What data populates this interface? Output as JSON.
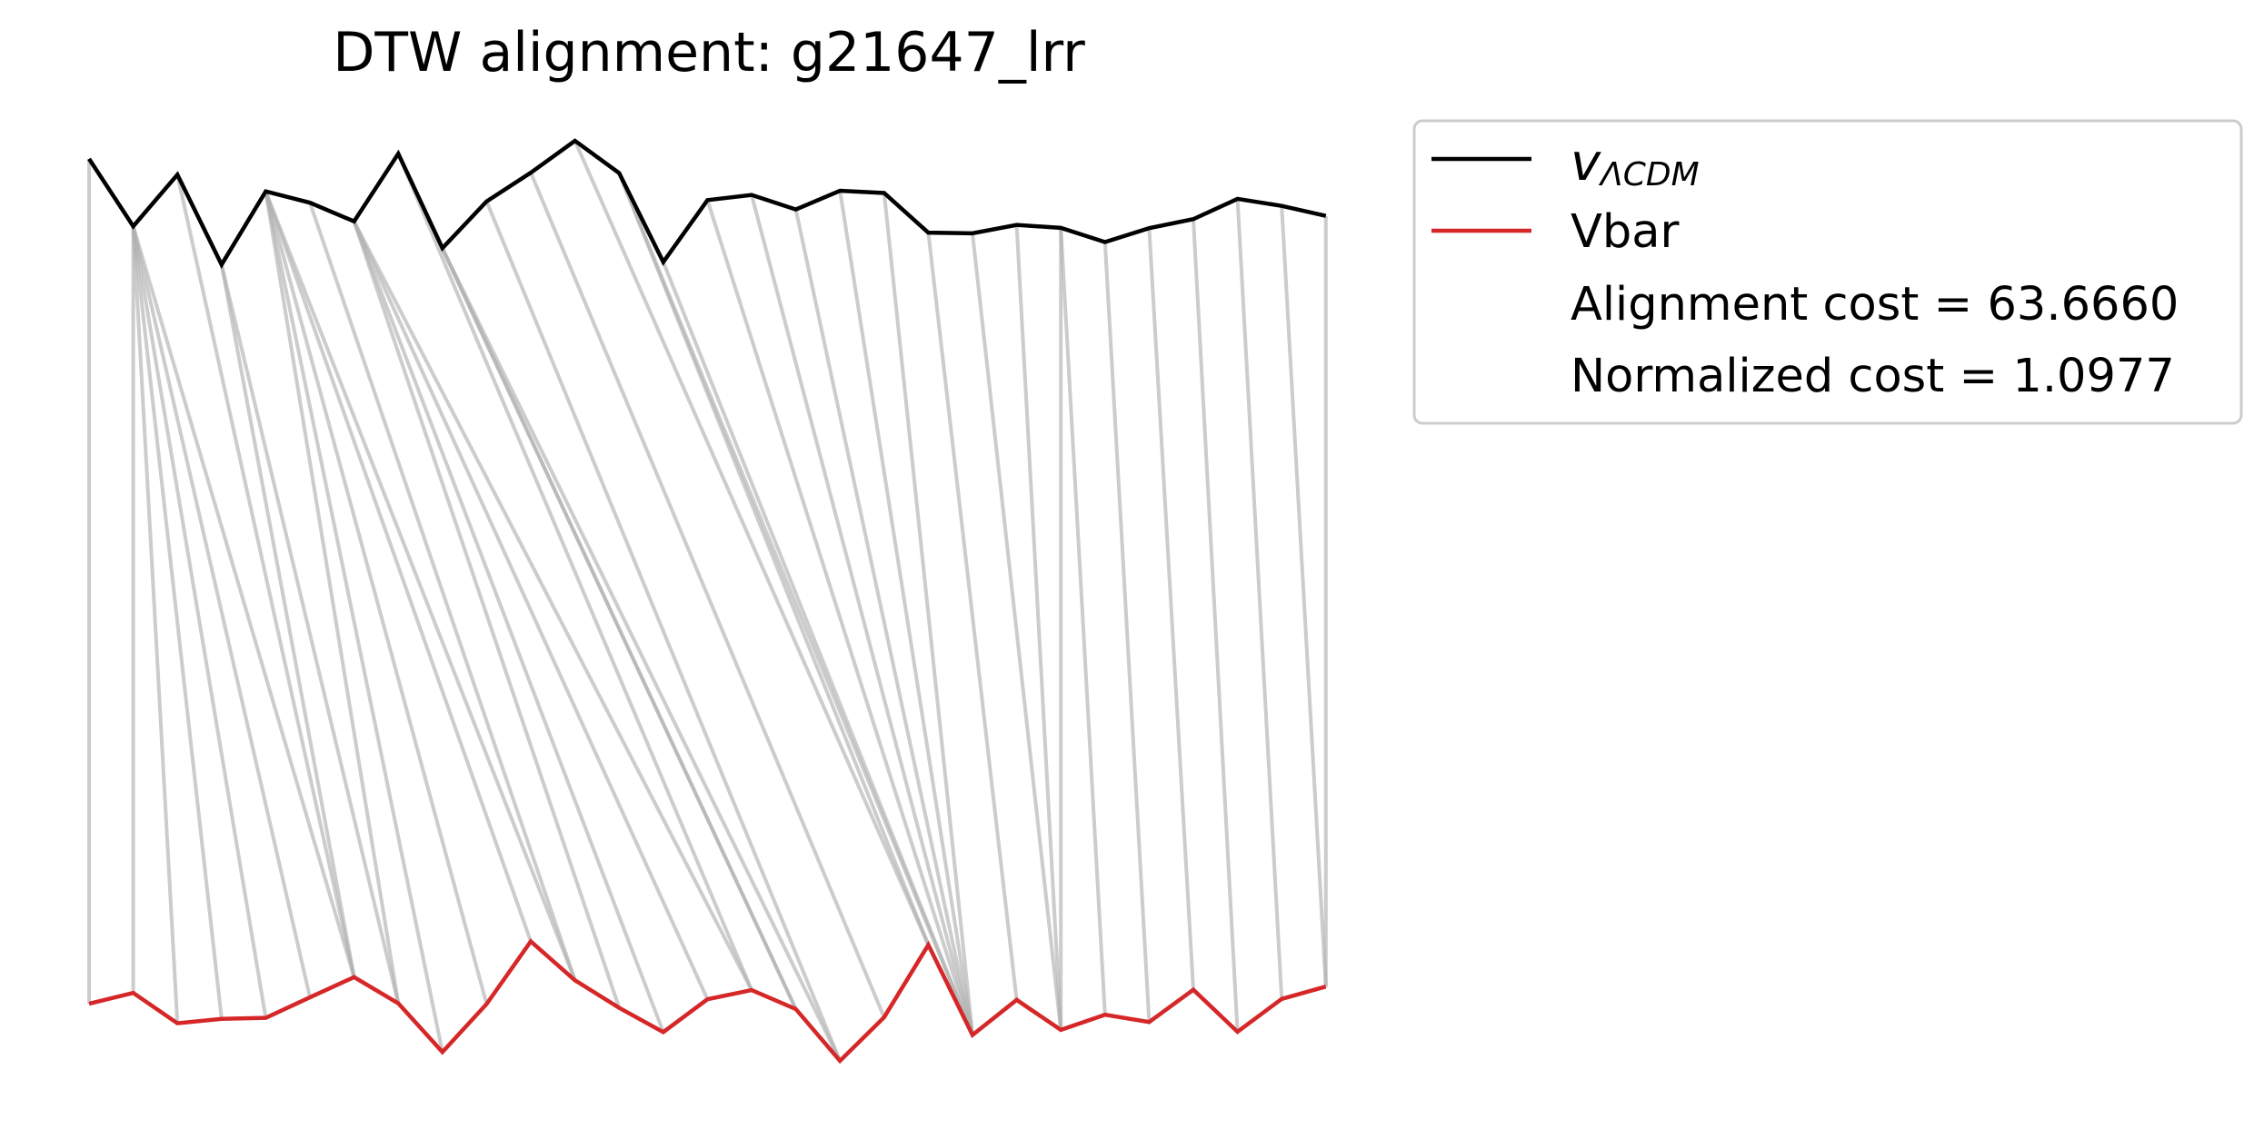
{
  "chart_data": {
    "type": "line",
    "title": "DTW alignment: g21647_lrr",
    "xlabel": "",
    "ylabel": "",
    "axes_visible": false,
    "grid": false,
    "legend_position": "right",
    "colors": {
      "v_lcdm": "#000000",
      "vbar": "#d62728",
      "alignment": "#b0b0b0"
    },
    "series": [
      {
        "name": "v_ΛCDM",
        "values": [
          0.944,
          0.735,
          0.895,
          0.616,
          0.843,
          0.808,
          0.75,
          0.96,
          0.667,
          0.812,
          0.901,
          1.0,
          0.9,
          0.624,
          0.816,
          0.832,
          0.787,
          0.845,
          0.838,
          0.715,
          0.713,
          0.739,
          0.73,
          0.686,
          0.729,
          0.757,
          0.82,
          0.798,
          0.767
        ]
      },
      {
        "name": "Vbar",
        "values": [
          0.181,
          0.215,
          0.119,
          0.133,
          0.136,
          0.201,
          0.265,
          0.182,
          0.028,
          0.18,
          0.378,
          0.255,
          0.168,
          0.091,
          0.195,
          0.224,
          0.164,
          0.0,
          0.138,
          0.367,
          0.082,
          0.193,
          0.098,
          0.146,
          0.123,
          0.225,
          0.092,
          0.196,
          0.235
        ]
      }
    ],
    "alignment_path": [
      [
        0,
        0
      ],
      [
        1,
        1
      ],
      [
        1,
        2
      ],
      [
        1,
        3
      ],
      [
        1,
        4
      ],
      [
        1,
        5
      ],
      [
        1,
        6
      ],
      [
        2,
        6
      ],
      [
        3,
        6
      ],
      [
        3,
        7
      ],
      [
        4,
        7
      ],
      [
        4,
        8
      ],
      [
        4,
        9
      ],
      [
        4,
        10
      ],
      [
        4,
        11
      ],
      [
        5,
        11
      ],
      [
        6,
        12
      ],
      [
        6,
        13
      ],
      [
        6,
        14
      ],
      [
        6,
        15
      ],
      [
        7,
        15
      ],
      [
        7,
        16
      ],
      [
        8,
        16
      ],
      [
        8,
        17
      ],
      [
        9,
        17
      ],
      [
        10,
        18
      ],
      [
        11,
        19
      ],
      [
        12,
        19
      ],
      [
        12,
        20
      ],
      [
        13,
        20
      ],
      [
        14,
        20
      ],
      [
        15,
        20
      ],
      [
        16,
        20
      ],
      [
        17,
        20
      ],
      [
        18,
        20
      ],
      [
        19,
        21
      ],
      [
        20,
        22
      ],
      [
        21,
        22
      ],
      [
        22,
        22
      ],
      [
        22,
        23
      ],
      [
        23,
        24
      ],
      [
        24,
        25
      ],
      [
        25,
        26
      ],
      [
        26,
        27
      ],
      [
        27,
        28
      ],
      [
        28,
        28
      ]
    ],
    "legend": {
      "entries": [
        {
          "label": "v",
          "sublabel": "ΛCDM",
          "color": "#000000"
        },
        {
          "label": "Vbar",
          "color": "#d62728"
        },
        {
          "label": "Alignment cost = 63.6660"
        },
        {
          "label": "Normalized cost = 1.0977"
        }
      ]
    }
  }
}
